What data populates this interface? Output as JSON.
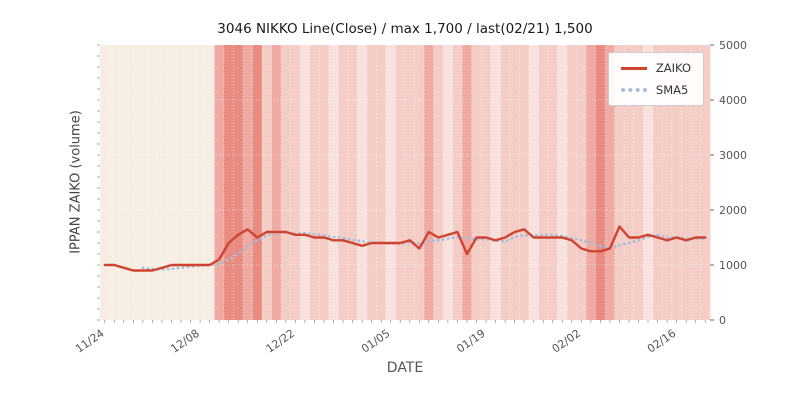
{
  "figure": {
    "title": "3046 NIKKO Line(Close) / max 1,700 / last(02/21) 1,500",
    "xlabel": "DATE",
    "ylabel": "IPPAN ZAIKO (volume)"
  },
  "legend": {
    "items": [
      {
        "label": "ZAIKO"
      },
      {
        "label": "SMA5"
      }
    ]
  },
  "chart_data": {
    "type": "line",
    "title": "3046 NIKKO Line(Close) / max 1,700 / last(02/21) 1,500",
    "xlabel": "DATE",
    "ylabel": "IPPAN ZAIKO (volume)",
    "ylim": [
      0,
      5000
    ],
    "y_ticks": [
      0,
      1000,
      2000,
      3000,
      4000,
      5000
    ],
    "x_tick_interval": 10,
    "x_tick_labels": [
      "11/24",
      "12/08",
      "12/22",
      "01/05",
      "01/19",
      "02/02",
      "02/16"
    ],
    "legend_position": "upper right",
    "grid": "white dotted vertical per-day lines over shaded day bands",
    "dates": [
      "11/24",
      "11/25",
      "11/28",
      "11/29",
      "11/30",
      "12/01",
      "12/02",
      "12/05",
      "12/06",
      "12/07",
      "12/08",
      "12/09",
      "12/12",
      "12/13",
      "12/14",
      "12/15",
      "12/16",
      "12/19",
      "12/20",
      "12/21",
      "12/22",
      "12/23",
      "12/26",
      "12/27",
      "12/28",
      "12/29",
      "12/30",
      "01/02",
      "01/03",
      "01/04",
      "01/05",
      "01/06",
      "01/09",
      "01/10",
      "01/11",
      "01/12",
      "01/13",
      "01/16",
      "01/17",
      "01/18",
      "01/19",
      "01/20",
      "01/23",
      "01/24",
      "01/25",
      "01/26",
      "01/27",
      "01/30",
      "01/31",
      "02/01",
      "02/02",
      "02/03",
      "02/06",
      "02/07",
      "02/08",
      "02/09",
      "02/10",
      "02/13",
      "02/14",
      "02/15",
      "02/16",
      "02/17",
      "02/20",
      "02/21"
    ],
    "series": [
      {
        "name": "ZAIKO",
        "color": "#cf4431",
        "style": "solid",
        "values": [
          1000,
          1000,
          950,
          900,
          900,
          900,
          950,
          1000,
          1000,
          1000,
          1000,
          1000,
          1100,
          1400,
          1550,
          1650,
          1500,
          1600,
          1600,
          1600,
          1550,
          1550,
          1500,
          1500,
          1450,
          1450,
          1400,
          1350,
          1400,
          1400,
          1400,
          1400,
          1450,
          1300,
          1600,
          1500,
          1550,
          1600,
          1200,
          1500,
          1500,
          1450,
          1500,
          1600,
          1650,
          1500,
          1500,
          1500,
          1500,
          1450,
          1300,
          1250,
          1250,
          1300,
          1700,
          1500,
          1500,
          1550,
          1500,
          1450,
          1500,
          1450,
          1500,
          1500
        ]
      },
      {
        "name": "SMA5",
        "color": "#a3bedb",
        "style": "dotted",
        "derived": "moving_average",
        "window": 5
      }
    ],
    "background_bands": {
      "colors": [
        "#f6eee3",
        "#f8e2dd",
        "#f4cdc7",
        "#efaba3",
        "#e98b81"
      ],
      "levels": [
        0,
        0,
        0,
        0,
        0,
        0,
        0,
        0,
        0,
        0,
        0,
        0,
        3,
        4,
        4,
        3,
        4,
        2,
        3,
        2,
        2,
        1,
        2,
        2,
        1,
        2,
        2,
        1,
        2,
        2,
        1,
        2,
        2,
        2,
        3,
        2,
        1,
        2,
        3,
        2,
        2,
        1,
        2,
        2,
        2,
        1,
        2,
        2,
        1,
        2,
        2,
        3,
        4,
        3,
        2,
        2,
        2,
        1,
        2,
        2,
        2,
        2,
        2,
        2
      ]
    }
  }
}
